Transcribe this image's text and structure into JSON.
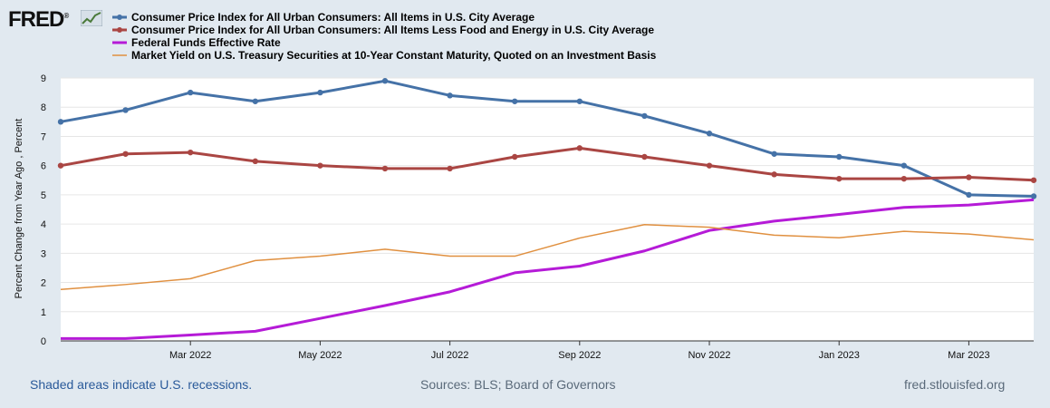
{
  "logo": {
    "text": "FRED",
    "registered": "®",
    "icon": "line-chart-icon"
  },
  "footer": {
    "recessions": "Shaded areas indicate U.S. recessions.",
    "sources": "Sources: BLS; Board of Governors",
    "site": "fred.stlouisfed.org"
  },
  "colors": {
    "background": "#e1e9f0",
    "plot_bg": "#ffffff",
    "gridline": "#e6e6e6",
    "series1": "#4572a7",
    "series2": "#aa4643",
    "series3": "#b51bd7",
    "series4": "#e09040"
  },
  "chart_data": {
    "type": "line",
    "title": "",
    "xlabel": "",
    "ylabel": "Percent Change from Year Ago , Percent",
    "ylim": [
      0,
      9
    ],
    "yticks": [
      0,
      1,
      2,
      3,
      4,
      5,
      6,
      7,
      8,
      9
    ],
    "x": [
      "2022-01",
      "2022-02",
      "2022-03",
      "2022-04",
      "2022-05",
      "2022-06",
      "2022-07",
      "2022-08",
      "2022-09",
      "2022-10",
      "2022-11",
      "2022-12",
      "2023-01",
      "2023-02",
      "2023-03",
      "2023-04"
    ],
    "xticks": [
      {
        "index": 2,
        "label": "Mar 2022"
      },
      {
        "index": 4,
        "label": "May 2022"
      },
      {
        "index": 6,
        "label": "Jul 2022"
      },
      {
        "index": 8,
        "label": "Sep 2022"
      },
      {
        "index": 10,
        "label": "Nov 2022"
      },
      {
        "index": 12,
        "label": "Jan 2023"
      },
      {
        "index": 14,
        "label": "Mar 2023"
      }
    ],
    "grid": true,
    "legend": "top-left",
    "series": [
      {
        "name": "Consumer Price Index for All Urban Consumers: All Items in U.S. City Average",
        "color": "#4572a7",
        "marker": true,
        "values": [
          7.5,
          7.9,
          8.5,
          8.2,
          8.5,
          8.9,
          8.4,
          8.2,
          8.2,
          7.7,
          7.1,
          6.4,
          6.3,
          6.0,
          5.0,
          4.95
        ]
      },
      {
        "name": "Consumer Price Index for All Urban Consumers: All Items Less Food and Energy in U.S. City Average",
        "color": "#aa4643",
        "marker": true,
        "values": [
          6.0,
          6.4,
          6.45,
          6.15,
          6.0,
          5.9,
          5.9,
          6.3,
          6.6,
          6.3,
          6.0,
          5.7,
          5.55,
          5.55,
          5.6,
          5.5
        ]
      },
      {
        "name": "Federal Funds Effective Rate",
        "color": "#b51bd7",
        "marker": false,
        "values": [
          0.08,
          0.08,
          0.2,
          0.33,
          0.77,
          1.21,
          1.68,
          2.33,
          2.56,
          3.08,
          3.78,
          4.1,
          4.33,
          4.57,
          4.65,
          4.83
        ]
      },
      {
        "name": "Market Yield on U.S. Treasury Securities at 10-Year Constant Maturity, Quoted on an Investment Basis",
        "color": "#e09040",
        "marker": false,
        "values": [
          1.76,
          1.93,
          2.13,
          2.75,
          2.9,
          3.14,
          2.9,
          2.9,
          3.52,
          3.98,
          3.89,
          3.62,
          3.53,
          3.75,
          3.66,
          3.46
        ]
      }
    ]
  }
}
